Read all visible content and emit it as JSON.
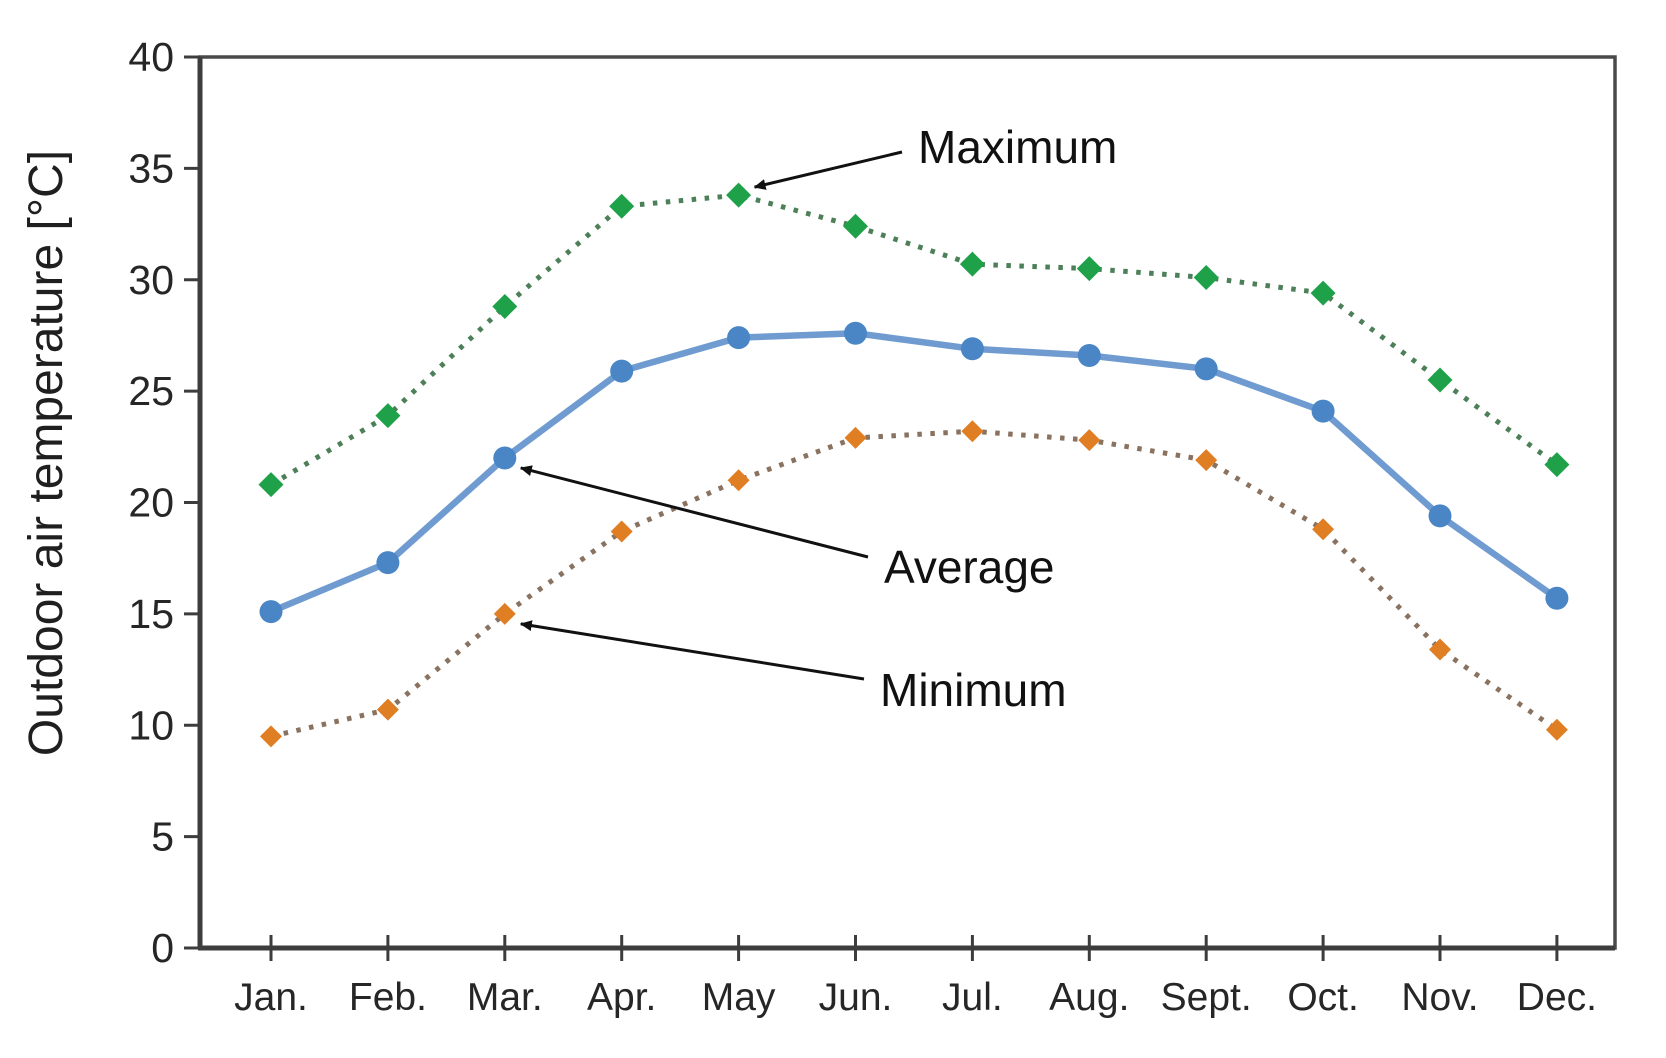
{
  "chart_data": {
    "type": "line",
    "title": "",
    "xlabel": "",
    "ylabel": "Outdoor air temperature [°C]",
    "ylim": [
      0,
      40
    ],
    "ytick_step": 5,
    "yticks": [
      "0",
      "5",
      "10",
      "15",
      "20",
      "25",
      "30",
      "35",
      "40"
    ],
    "grid": false,
    "legend_position": "none (labels drawn as arrow annotations inside plot)",
    "categories": [
      "Jan.",
      "Feb.",
      "Mar.",
      "Apr.",
      "May",
      "Jun.",
      "Jul.",
      "Aug.",
      "Sept.",
      "Oct.",
      "Nov.",
      "Dec."
    ],
    "series": [
      {
        "name": "Maximum",
        "line_style": "dotted",
        "marker": "diamond",
        "marker_color": "#1fa14a",
        "dot_color": "#4d7f58",
        "values": [
          20.8,
          23.9,
          28.8,
          33.3,
          33.8,
          32.4,
          30.7,
          30.5,
          30.1,
          29.4,
          25.5,
          21.7
        ]
      },
      {
        "name": "Average",
        "line_style": "solid",
        "marker": "circle",
        "marker_color": "#4a86c5",
        "line_color": "#6f9bd1",
        "values": [
          15.1,
          17.3,
          22.0,
          25.9,
          27.4,
          27.6,
          26.9,
          26.6,
          26.0,
          24.1,
          19.4,
          15.7
        ]
      },
      {
        "name": "Minimum",
        "line_style": "dotted",
        "marker": "diamond",
        "marker_color": "#e07e24",
        "dot_color": "#8a7260",
        "values": [
          9.5,
          10.7,
          15.0,
          18.7,
          21.0,
          22.9,
          23.2,
          22.8,
          21.9,
          18.8,
          13.4,
          9.8
        ]
      }
    ],
    "annotations": [
      {
        "label": "Maximum",
        "series_index": 0,
        "point_index": 4
      },
      {
        "label": "Average",
        "series_index": 1,
        "point_index": 2
      },
      {
        "label": "Minimum",
        "series_index": 2,
        "point_index": 2
      }
    ],
    "colors": {
      "axis": "#3d3d3d",
      "tick_text": "#262626",
      "annotation": "#111111",
      "background": "#ffffff"
    }
  }
}
